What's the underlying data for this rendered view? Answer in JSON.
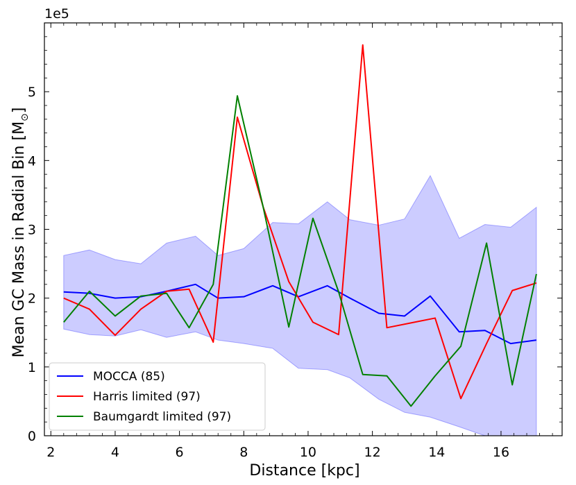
{
  "chart_data": {
    "type": "line",
    "xlabel": "Distance [kpc]",
    "ylabel": "Mean GC Mass in Radial Bin [M",
    "ylabel_symbol": "⊙",
    "ylabel_suffix": "]",
    "offset_label": "1e5",
    "xlim": [
      1.8,
      17.9
    ],
    "ylim": [
      0,
      6.0
    ],
    "xticks": [
      2,
      4,
      6,
      8,
      10,
      12,
      14,
      16
    ],
    "xtick_labels": [
      "2",
      "4",
      "6",
      "8",
      "10",
      "12",
      "14",
      "16"
    ],
    "yticks": [
      0,
      1,
      2,
      3,
      4,
      5
    ],
    "ytick_labels": [
      "0",
      "1",
      "2",
      "3",
      "4",
      "5"
    ],
    "band": {
      "name": "MOCCA spread",
      "color": "#0000ff",
      "x": [
        2.4,
        3.2,
        4.0,
        4.8,
        5.6,
        6.5,
        7.2,
        8.0,
        8.9,
        9.7,
        10.6,
        11.3,
        12.2,
        13.0,
        13.8,
        14.7,
        15.5,
        16.3,
        17.1
      ],
      "upper": [
        2.62,
        2.7,
        2.56,
        2.5,
        2.8,
        2.9,
        2.62,
        2.72,
        3.1,
        3.08,
        3.4,
        3.14,
        3.06,
        3.15,
        3.78,
        2.87,
        3.07,
        3.03,
        3.32
      ],
      "lower": [
        1.55,
        1.47,
        1.45,
        1.54,
        1.43,
        1.51,
        1.39,
        1.34,
        1.27,
        0.98,
        0.96,
        0.84,
        0.53,
        0.34,
        0.27,
        0.13,
        0.0,
        0.0,
        0.0
      ]
    },
    "series": [
      {
        "name": "MOCCA (85)",
        "color": "#0000ff",
        "x": [
          2.4,
          3.2,
          4.0,
          4.8,
          5.6,
          6.5,
          7.2,
          8.0,
          8.9,
          9.7,
          10.6,
          11.3,
          12.2,
          13.0,
          13.8,
          14.7,
          15.5,
          16.3,
          17.1
        ],
        "y": [
          2.09,
          2.07,
          2.0,
          2.02,
          2.1,
          2.2,
          2.0,
          2.02,
          2.18,
          2.02,
          2.18,
          2.0,
          1.78,
          1.74,
          2.03,
          1.51,
          1.53,
          1.34,
          1.39
        ]
      },
      {
        "name": "Harris limited (97)",
        "color": "#ff0000",
        "x": [
          2.4,
          3.2,
          4.0,
          4.8,
          5.6,
          6.3,
          7.05,
          7.8,
          8.6,
          9.4,
          10.15,
          10.95,
          11.7,
          12.45,
          13.2,
          13.95,
          14.75,
          15.55,
          16.35,
          17.1
        ],
        "y": [
          2.0,
          1.84,
          1.46,
          1.84,
          2.1,
          2.13,
          1.36,
          4.63,
          3.33,
          2.24,
          1.65,
          1.47,
          5.68,
          1.57,
          1.64,
          1.71,
          0.54,
          1.34,
          2.11,
          2.22
        ]
      },
      {
        "name": "Baumgardt limited (97)",
        "color": "#008000",
        "x": [
          2.4,
          3.2,
          4.0,
          4.8,
          5.6,
          6.3,
          7.05,
          7.8,
          8.6,
          9.4,
          10.15,
          10.95,
          11.7,
          12.45,
          13.2,
          13.95,
          14.75,
          15.55,
          16.35,
          17.1
        ],
        "y": [
          1.65,
          2.1,
          1.74,
          2.03,
          2.07,
          1.57,
          2.2,
          4.94,
          3.33,
          1.58,
          3.16,
          2.09,
          0.89,
          0.87,
          0.43,
          0.87,
          1.3,
          2.8,
          0.74,
          2.35
        ]
      }
    ],
    "legend_position": "lower-left"
  }
}
